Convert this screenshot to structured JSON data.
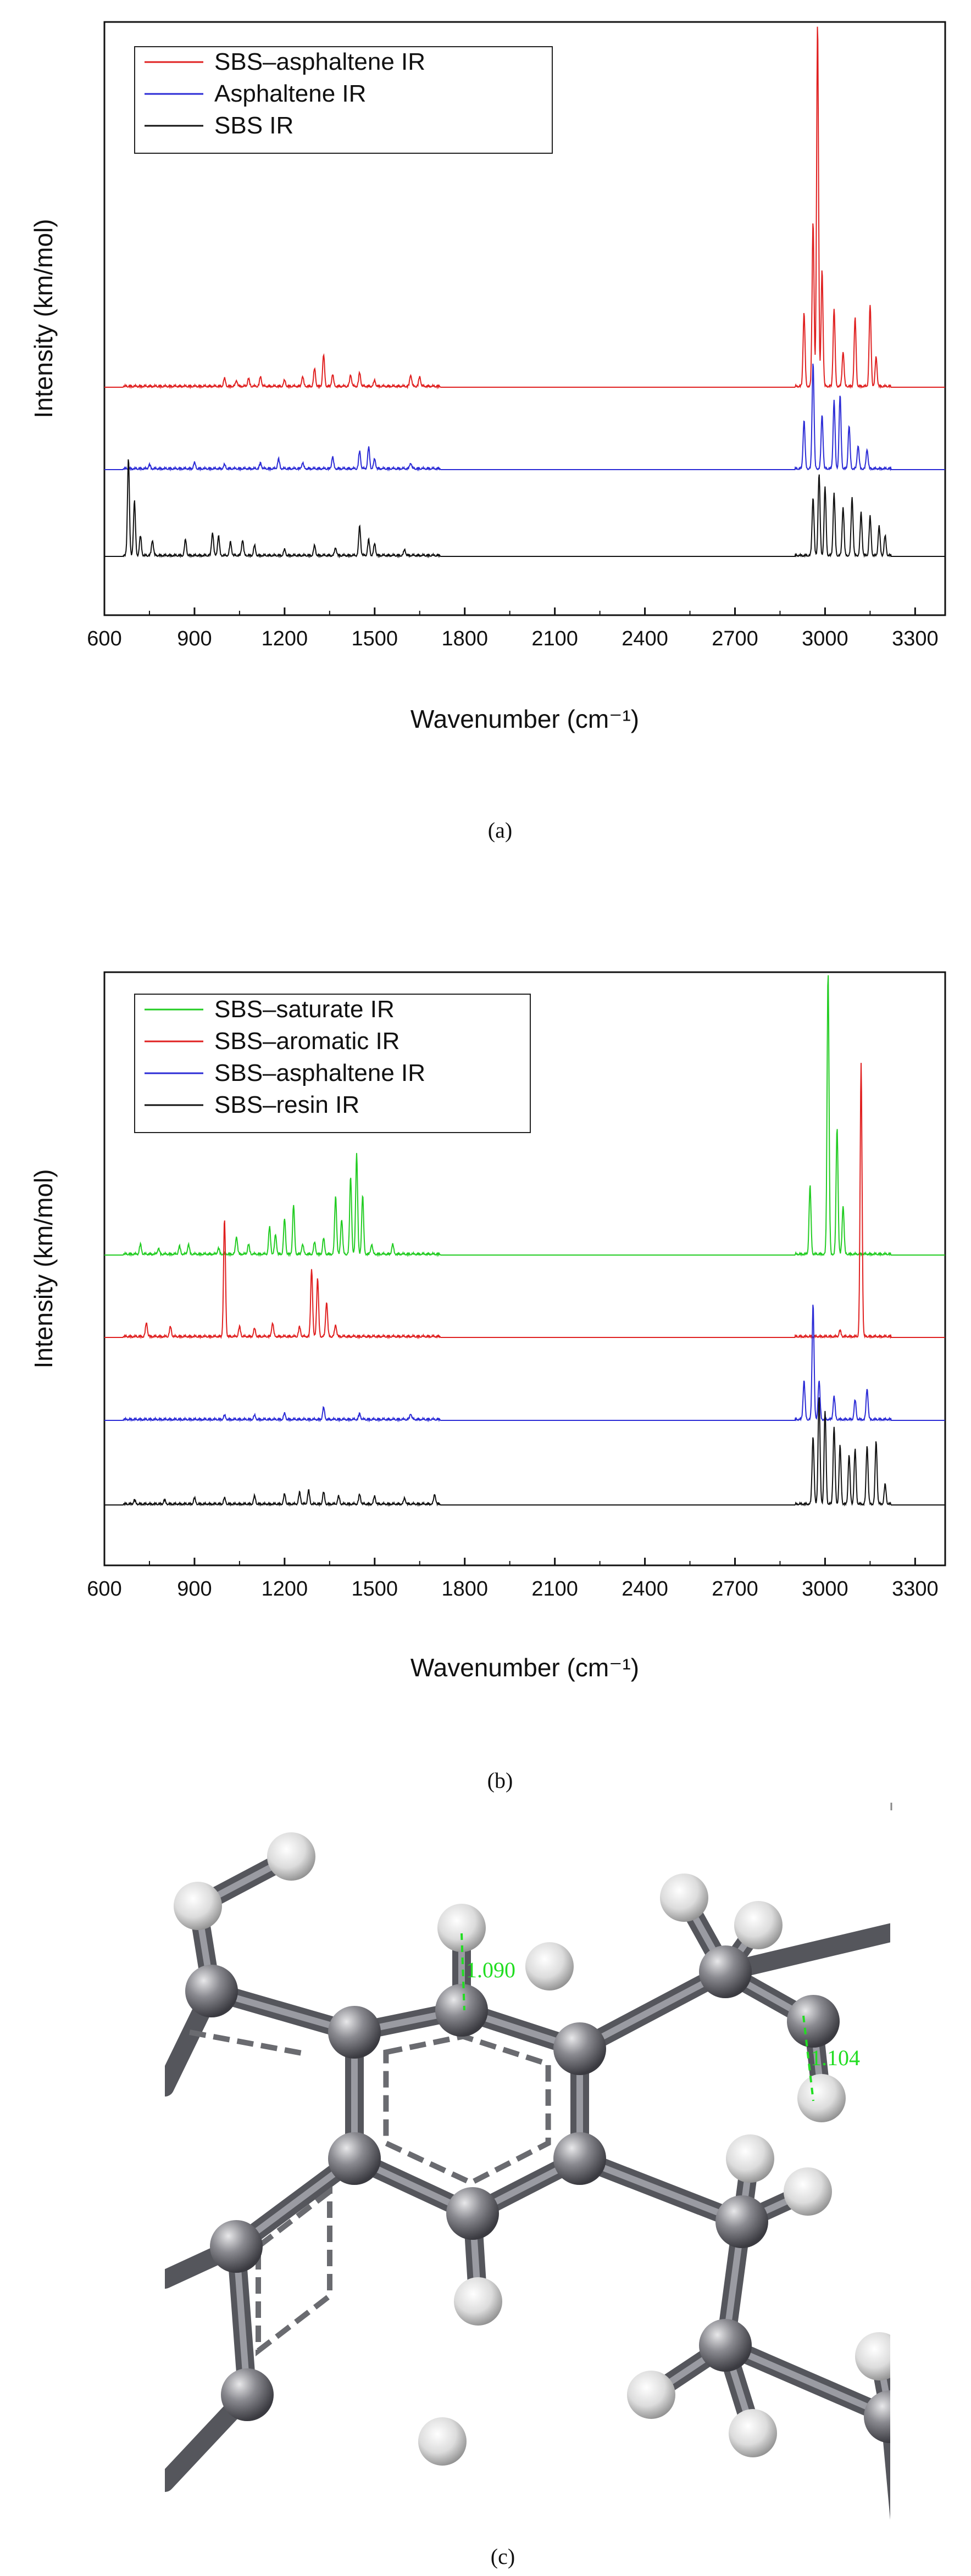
{
  "chart_data": [
    {
      "type": "line",
      "panel": "(a)",
      "caption": "(a)",
      "xlabel": "Wavenumber (cm⁻¹)",
      "ylabel": "Intensity (km/mol)",
      "xlim": [
        600,
        3400
      ],
      "x_ticks": [
        "600",
        "900",
        "1200",
        "1500",
        "1800",
        "2100",
        "2400",
        "2700",
        "3000",
        "3300"
      ],
      "stacked": true,
      "legend_position": "top-left",
      "series": [
        {
          "name": "SBS–asphaltene IR",
          "color": "#e02020",
          "peaks": [
            [
              1000,
              0.04
            ],
            [
              1040,
              0.03
            ],
            [
              1080,
              0.04
            ],
            [
              1120,
              0.05
            ],
            [
              1200,
              0.03
            ],
            [
              1260,
              0.05
            ],
            [
              1300,
              0.09
            ],
            [
              1330,
              0.16
            ],
            [
              1360,
              0.06
            ],
            [
              1420,
              0.06
            ],
            [
              1450,
              0.07
            ],
            [
              1500,
              0.03
            ],
            [
              1620,
              0.06
            ],
            [
              1650,
              0.05
            ],
            [
              2930,
              0.38
            ],
            [
              2960,
              0.85
            ],
            [
              2975,
              1.87
            ],
            [
              2990,
              0.6
            ],
            [
              3030,
              0.4
            ],
            [
              3060,
              0.18
            ],
            [
              3100,
              0.35
            ],
            [
              3150,
              0.42
            ],
            [
              3170,
              0.15
            ]
          ]
        },
        {
          "name": "Asphaltene IR",
          "color": "#2b2bd6",
          "peaks": [
            [
              750,
              0.02
            ],
            [
              900,
              0.03
            ],
            [
              1000,
              0.02
            ],
            [
              1120,
              0.03
            ],
            [
              1180,
              0.05
            ],
            [
              1260,
              0.03
            ],
            [
              1360,
              0.06
            ],
            [
              1450,
              0.09
            ],
            [
              1480,
              0.11
            ],
            [
              1500,
              0.05
            ],
            [
              1620,
              0.03
            ],
            [
              2930,
              0.25
            ],
            [
              2960,
              0.55
            ],
            [
              2990,
              0.28
            ],
            [
              3030,
              0.35
            ],
            [
              3050,
              0.38
            ],
            [
              3080,
              0.22
            ],
            [
              3110,
              0.12
            ],
            [
              3140,
              0.1
            ]
          ]
        },
        {
          "name": "SBS IR",
          "color": "#111111",
          "peaks": [
            [
              680,
              0.5
            ],
            [
              700,
              0.28
            ],
            [
              720,
              0.1
            ],
            [
              760,
              0.08
            ],
            [
              870,
              0.08
            ],
            [
              960,
              0.12
            ],
            [
              980,
              0.1
            ],
            [
              1020,
              0.07
            ],
            [
              1060,
              0.08
            ],
            [
              1100,
              0.05
            ],
            [
              1200,
              0.03
            ],
            [
              1300,
              0.05
            ],
            [
              1370,
              0.04
            ],
            [
              1450,
              0.15
            ],
            [
              1480,
              0.08
            ],
            [
              1500,
              0.06
            ],
            [
              1600,
              0.03
            ],
            [
              2960,
              0.3
            ],
            [
              2980,
              0.42
            ],
            [
              3000,
              0.35
            ],
            [
              3030,
              0.32
            ],
            [
              3060,
              0.25
            ],
            [
              3090,
              0.3
            ],
            [
              3120,
              0.22
            ],
            [
              3150,
              0.2
            ],
            [
              3180,
              0.15
            ],
            [
              3200,
              0.1
            ]
          ]
        }
      ]
    },
    {
      "type": "line",
      "panel": "(b)",
      "caption": "(b)",
      "xlabel": "Wavenumber (cm⁻¹)",
      "ylabel": "Intensity (km/mol)",
      "xlim": [
        600,
        3400
      ],
      "x_ticks": [
        "600",
        "900",
        "1200",
        "1500",
        "1800",
        "2100",
        "2400",
        "2700",
        "3000",
        "3300"
      ],
      "stacked": true,
      "legend_position": "top-left",
      "series": [
        {
          "name": "SBS–saturate IR",
          "color": "#22cc22",
          "peaks": [
            [
              720,
              0.05
            ],
            [
              780,
              0.03
            ],
            [
              850,
              0.04
            ],
            [
              880,
              0.05
            ],
            [
              980,
              0.03
            ],
            [
              1040,
              0.09
            ],
            [
              1080,
              0.05
            ],
            [
              1150,
              0.14
            ],
            [
              1170,
              0.1
            ],
            [
              1200,
              0.18
            ],
            [
              1230,
              0.25
            ],
            [
              1260,
              0.05
            ],
            [
              1300,
              0.06
            ],
            [
              1330,
              0.08
            ],
            [
              1370,
              0.3
            ],
            [
              1390,
              0.18
            ],
            [
              1420,
              0.4
            ],
            [
              1440,
              0.52
            ],
            [
              1460,
              0.3
            ],
            [
              1490,
              0.05
            ],
            [
              1560,
              0.05
            ],
            [
              2950,
              0.35
            ],
            [
              3010,
              1.45
            ],
            [
              3040,
              0.65
            ],
            [
              3060,
              0.25
            ]
          ]
        },
        {
          "name": "SBS–aromatic IR",
          "color": "#e02020",
          "peaks": [
            [
              740,
              0.07
            ],
            [
              820,
              0.05
            ],
            [
              1000,
              0.6
            ],
            [
              1050,
              0.05
            ],
            [
              1100,
              0.04
            ],
            [
              1160,
              0.07
            ],
            [
              1250,
              0.05
            ],
            [
              1290,
              0.35
            ],
            [
              1310,
              0.3
            ],
            [
              1340,
              0.18
            ],
            [
              1370,
              0.06
            ],
            [
              3050,
              0.03
            ],
            [
              3120,
              1.4
            ]
          ]
        },
        {
          "name": "SBS–asphaltene IR",
          "color": "#2b2bd6",
          "peaks": [
            [
              1000,
              0.02
            ],
            [
              1100,
              0.02
            ],
            [
              1200,
              0.03
            ],
            [
              1330,
              0.06
            ],
            [
              1450,
              0.03
            ],
            [
              1620,
              0.03
            ],
            [
              2930,
              0.2
            ],
            [
              2960,
              0.6
            ],
            [
              2980,
              0.2
            ],
            [
              3030,
              0.12
            ],
            [
              3100,
              0.1
            ],
            [
              3140,
              0.16
            ]
          ]
        },
        {
          "name": "SBS–resin IR",
          "color": "#111111",
          "peaks": [
            [
              700,
              0.02
            ],
            [
              800,
              0.02
            ],
            [
              900,
              0.03
            ],
            [
              1000,
              0.03
            ],
            [
              1100,
              0.04
            ],
            [
              1200,
              0.05
            ],
            [
              1250,
              0.06
            ],
            [
              1280,
              0.07
            ],
            [
              1330,
              0.06
            ],
            [
              1380,
              0.04
            ],
            [
              1450,
              0.05
            ],
            [
              1500,
              0.04
            ],
            [
              1600,
              0.03
            ],
            [
              1700,
              0.05
            ],
            [
              2960,
              0.35
            ],
            [
              2980,
              0.55
            ],
            [
              3000,
              0.48
            ],
            [
              3030,
              0.4
            ],
            [
              3050,
              0.3
            ],
            [
              3080,
              0.25
            ],
            [
              3100,
              0.28
            ],
            [
              3140,
              0.3
            ],
            [
              3170,
              0.32
            ],
            [
              3200,
              0.1
            ]
          ]
        }
      ]
    }
  ],
  "figure_c": {
    "caption": "(c)",
    "bond_label_1": "1.090",
    "bond_label_2": "1.104"
  }
}
